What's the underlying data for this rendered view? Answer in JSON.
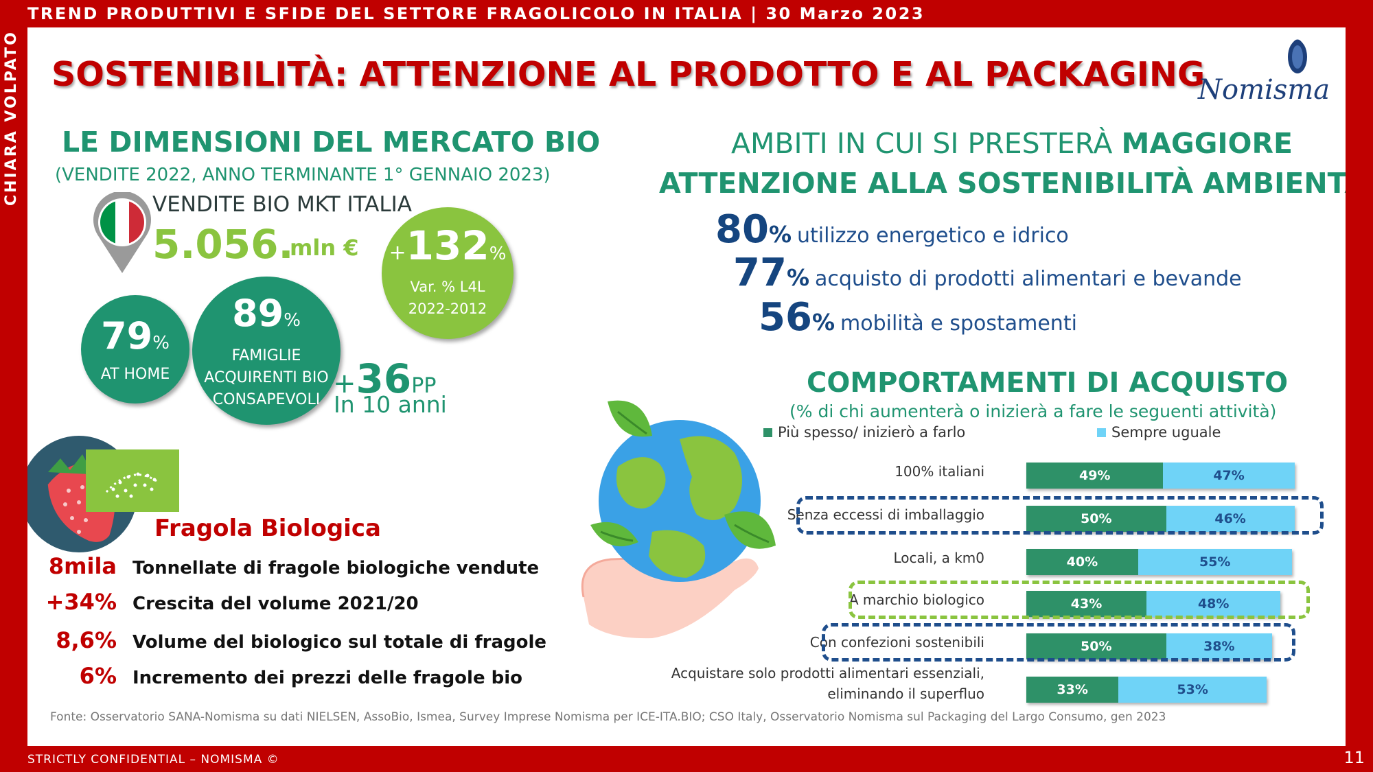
{
  "header": {
    "title": "TREND PRODUTTIVI E SFIDE DEL SETTORE FRAGOLICOLO IN ITALIA | 30 Marzo 2023",
    "side_author": "CHIARA VOLPATO",
    "footer_left": "STRICTLY CONFIDENTIAL – NOMISMA ©",
    "page_number": "11"
  },
  "slide": {
    "title": "SOSTENIBILITÀ: ATTENZIONE AL PRODOTTO E AL PACKAGING",
    "logo_text": "Nomisma"
  },
  "market": {
    "title": "LE DIMENSIONI DEL MERCATO BIO",
    "subtitle": "(VENDITE 2022, ANNO TERMINANTE  1° GENNAIO 2023)",
    "sales_label": "VENDITE BIO MKT ITALIA",
    "sales_value": "5.056.",
    "sales_unit": "mln €",
    "growth_sign": "+",
    "growth_value": "132",
    "growth_pct": "%",
    "growth_label1": "Var. % L4L",
    "growth_label2": "2022-2012",
    "home_value": "79",
    "home_pct": "%",
    "home_label": "AT HOME",
    "families_value": "89",
    "families_pct": "%",
    "families_label1": "FAMIGLIE",
    "families_label2": "ACQUIRENTI BIO",
    "families_label3": "CONSAPEVOLI",
    "pp_sign": "+",
    "pp_value": "36",
    "pp_unit": "PP",
    "pp_sub": "In 10 anni",
    "flag_colors": [
      "#009246",
      "#ffffff",
      "#ce2b37"
    ]
  },
  "fragola": {
    "title": "Fragola Biologica",
    "rows": [
      {
        "value": "8mila",
        "desc": "Tonnellate di fragole biologiche vendute"
      },
      {
        "value": "+34%",
        "desc": "Crescita del volume 2021/20"
      },
      {
        "value": "8,6%",
        "desc": "Volume del biologico sul totale di fragole"
      },
      {
        "value": "6%",
        "desc": "Incremento dei prezzi delle fragole bio"
      }
    ]
  },
  "ambiti": {
    "title_plain": "AMBITI IN CUI SI PRESTERÀ ",
    "title_bold": "MAGGIORE",
    "title_line2": "ATTENZIONE ALLA SOSTENIBILITÀ AMBIENTALE",
    "items": [
      {
        "pct": "80",
        "sign": "%",
        "text": "utilizzo energetico e idrico"
      },
      {
        "pct": "77",
        "sign": "%",
        "text": "acquisto di prodotti alimentari e bevande"
      },
      {
        "pct": "56",
        "sign": "%",
        "text": "mobilità e spostamenti"
      }
    ]
  },
  "comportamenti": {
    "title": "COMPORTAMENTI DI ACQUISTO",
    "subtitle": "(% di chi aumenterà o inizierà a fare le seguenti attività)",
    "legend1": "Più spesso/ inizierò a farlo",
    "legend2": "Sempre uguale",
    "color1": "#2e9168",
    "color2": "#6fd3f7",
    "box_blue": "#1f4e8c",
    "box_green": "#8ac43f"
  },
  "chart_data": {
    "type": "bar",
    "orientation": "horizontal",
    "stacked": true,
    "categories": [
      "100% italiani",
      "Senza eccessi di imballaggio",
      "Locali, a km0",
      "A marchio biologico",
      "Con confezioni sostenibili",
      "Acquistare solo prodotti alimentari essenziali, eliminando il superfluo"
    ],
    "category_lines": [
      [
        "100% italiani"
      ],
      [
        "Senza eccessi di imballaggio"
      ],
      [
        "Locali, a km0"
      ],
      [
        "A marchio biologico"
      ],
      [
        "Con confezioni sostenibili"
      ],
      [
        "Acquistare solo prodotti alimentari essenziali,",
        "eliminando il superfluo"
      ]
    ],
    "series": [
      {
        "name": "Più spesso/ inizierò a farlo",
        "values": [
          49,
          50,
          40,
          43,
          50,
          33
        ],
        "labels": [
          "49%",
          "50%",
          "40%",
          "43%",
          "50%",
          "33%"
        ]
      },
      {
        "name": "Sempre uguale",
        "values": [
          47,
          46,
          55,
          48,
          38,
          53
        ],
        "labels": [
          "47%",
          "46%",
          "55%",
          "48%",
          "38%",
          "53%"
        ]
      }
    ],
    "highlighted": [
      {
        "category": "Senza eccessi di imballaggio",
        "color": "#1f4e8c"
      },
      {
        "category": "A marchio biologico",
        "color": "#8ac43f"
      },
      {
        "category": "Con confezioni sostenibili",
        "color": "#1f4e8c"
      }
    ],
    "xlim": [
      0,
      100
    ]
  },
  "source": "Fonte: Osservatorio SANA-Nomisma su dati NIELSEN, AssoBio, Ismea, Survey Imprese Nomisma per ICE-ITA.BIO; CSO Italy, Osservatorio Nomisma sul Packaging del Largo Consumo, gen 2023"
}
